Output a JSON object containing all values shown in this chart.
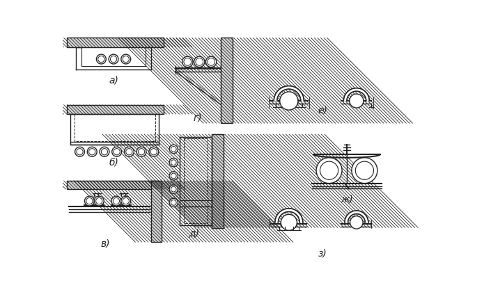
{
  "bg_color": "#ffffff",
  "line_color": "#222222",
  "labels": {
    "a": "а)",
    "b": "б)",
    "v": "в)",
    "g": "г)",
    "d": "д)",
    "e": "е)",
    "zh": "ж)",
    "z": "з)"
  },
  "label_fontsize": 10
}
